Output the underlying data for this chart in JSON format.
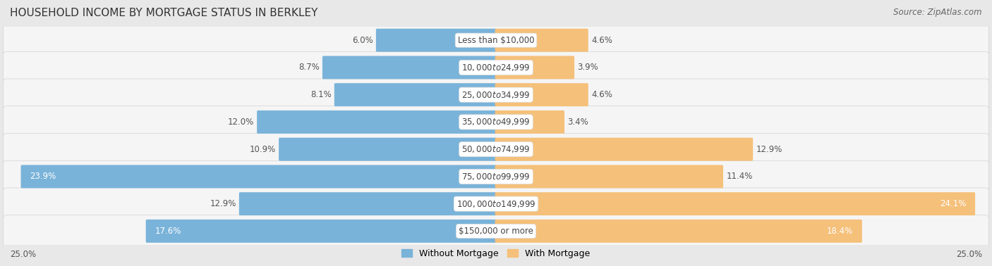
{
  "title": "HOUSEHOLD INCOME BY MORTGAGE STATUS IN BERKLEY",
  "source": "Source: ZipAtlas.com",
  "categories": [
    "Less than $10,000",
    "$10,000 to $24,999",
    "$25,000 to $34,999",
    "$35,000 to $49,999",
    "$50,000 to $74,999",
    "$75,000 to $99,999",
    "$100,000 to $149,999",
    "$150,000 or more"
  ],
  "without_mortgage": [
    6.0,
    8.7,
    8.1,
    12.0,
    10.9,
    23.9,
    12.9,
    17.6
  ],
  "with_mortgage": [
    4.6,
    3.9,
    4.6,
    3.4,
    12.9,
    11.4,
    24.1,
    18.4
  ],
  "color_without": "#7ab3d9",
  "color_with": "#f5c07a",
  "axis_max": 25.0,
  "bg_color": "#e8e8e8",
  "row_bg": "#f0f0f0",
  "title_fontsize": 11,
  "label_fontsize": 8.5,
  "legend_fontsize": 9,
  "source_fontsize": 8.5,
  "bar_label_inside_threshold": 15.0
}
